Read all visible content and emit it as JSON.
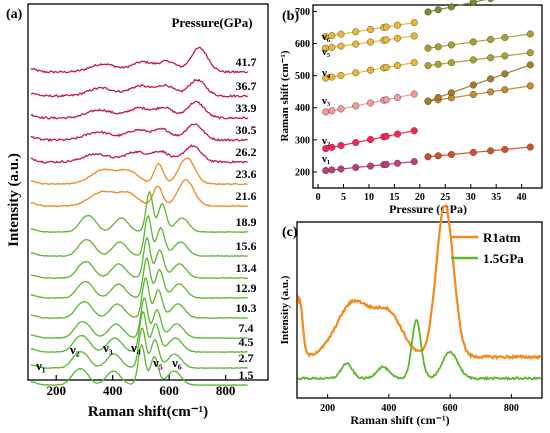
{
  "colors": {
    "magenta": "#c2185b",
    "orange": "#f28a1e",
    "green": "#5cb630",
    "panelb_series": [
      "#e8b832",
      "#e8b832",
      "#e8b832",
      "#f59a9a",
      "#ff2050",
      "#c23a7a",
      "#7e8a25",
      "#a8a030",
      "#b0a030",
      "#c88a30",
      "#a87a28",
      "#d0502a"
    ]
  },
  "chart_data": [
    {
      "panel": "(a)",
      "type": "line",
      "xlabel": "Raman shift(cm⁻¹)",
      "ylabel": "Intensity (a.u.)",
      "xlim": [
        100,
        950
      ],
      "xticks": [
        200,
        400,
        600,
        800
      ],
      "legend_title": "Pressure(GPa)",
      "pressures": [
        "41.7",
        "36.7",
        "33.9",
        "30.5",
        "26.2",
        "23.6",
        "21.6",
        "18.9",
        "15.6",
        "13.4",
        "12.9",
        "10.3",
        "7.4",
        "4.5",
        "2.7",
        "1.5"
      ],
      "series_colors": [
        "magenta",
        "magenta",
        "magenta",
        "magenta",
        "magenta",
        "orange",
        "orange",
        "green",
        "green",
        "green",
        "green",
        "green",
        "green",
        "green",
        "green",
        "green"
      ],
      "mode_labels": [
        "ν₁",
        "ν₂",
        "ν₃",
        "ν₄",
        "ν₅",
        "ν₆"
      ]
    },
    {
      "panel": "(b)",
      "type": "scatter",
      "xlabel": "Pressure (GPa)",
      "ylabel": "Raman shift (cm⁻¹)",
      "xlim": [
        -1,
        44
      ],
      "ylim": [
        150,
        720
      ],
      "xticks": [
        0,
        5,
        10,
        15,
        20,
        25,
        30,
        35,
        40
      ],
      "yticks": [
        200,
        300,
        400,
        500,
        600,
        700
      ],
      "x_low": [
        1.5,
        2.7,
        4.5,
        7.4,
        10.3,
        12.9,
        13.4,
        15.6,
        18.9
      ],
      "x_high": [
        21.6,
        23.6,
        26.2,
        30.5,
        33.9,
        36.7,
        41.7
      ],
      "mode_labels": [
        "ν₆",
        "ν₅",
        "ν₄",
        "ν₃",
        "ν₂",
        "ν₁"
      ],
      "series": [
        {
          "name": "ν₆",
          "segment": "low",
          "y0": 618,
          "slope": 2.5
        },
        {
          "name": "ν₅",
          "segment": "low",
          "y0": 582,
          "slope": 2.2
        },
        {
          "name": "ν₄",
          "segment": "low",
          "y0": 488,
          "slope": 2.8
        },
        {
          "name": "ν₃",
          "segment": "low",
          "y0": 382,
          "slope": 3.2
        },
        {
          "name": "ν₂",
          "segment": "low",
          "y0": 268,
          "slope": 3.2
        },
        {
          "name": "ν₁",
          "segment": "low",
          "y0": 202,
          "slope": 1.6
        },
        {
          "segment": "high",
          "y0": 625,
          "slope": 3.4
        },
        {
          "segment": "high",
          "y0": 538,
          "slope": 2.2
        },
        {
          "segment": "high",
          "y0": 488,
          "slope": 2.0
        },
        {
          "segment": "high",
          "y0": 368,
          "slope": 2.4
        },
        {
          "segment": "high",
          "y0": 300,
          "slope": 5.6
        },
        {
          "segment": "high",
          "y0": 215,
          "slope": 1.5
        }
      ]
    },
    {
      "panel": "(c)",
      "type": "line",
      "xlabel": "Raman shift (cm⁻¹)",
      "ylabel": "Intensity (a.u.)",
      "xlim": [
        100,
        900
      ],
      "xticks": [
        200,
        400,
        600,
        800
      ],
      "series": [
        {
          "name": "R1atm",
          "color": "orange"
        },
        {
          "name": "1.5GPa",
          "color": "green"
        }
      ]
    }
  ]
}
